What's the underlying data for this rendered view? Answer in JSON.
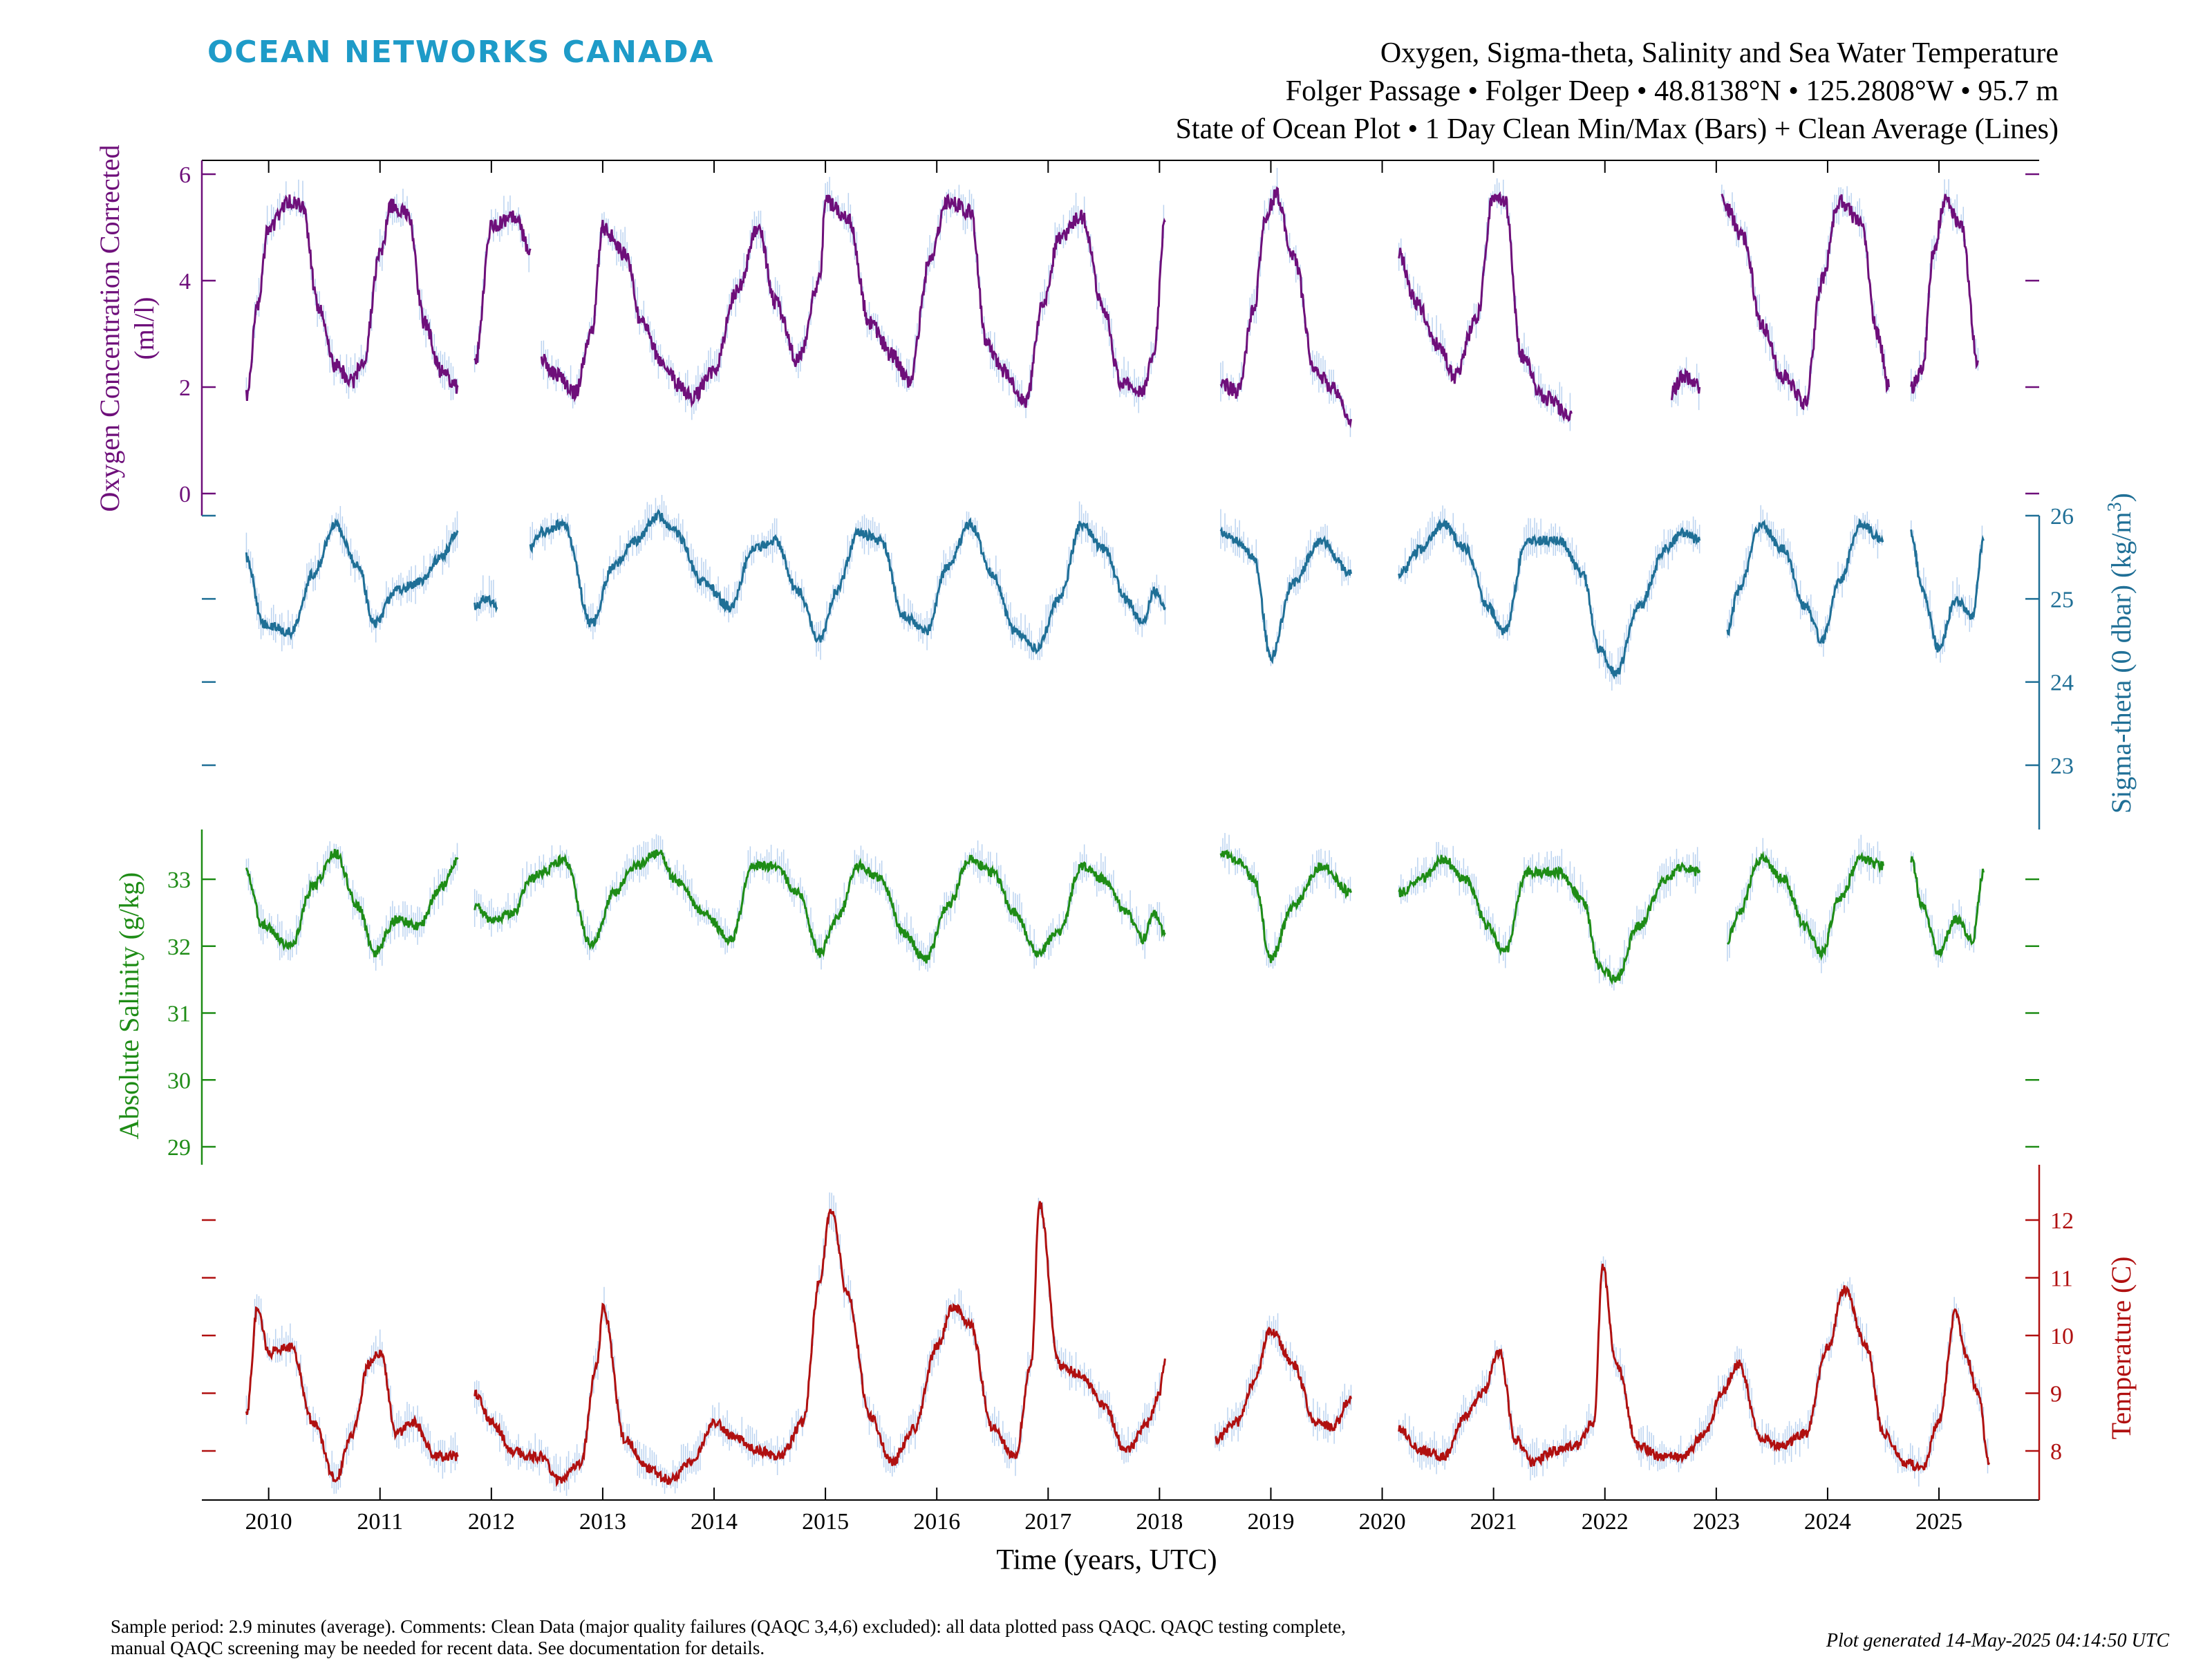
{
  "header": {
    "logo_text": "OCEAN NETWORKS CANADA",
    "title_line1": "Oxygen, Sigma-theta, Salinity and Sea Water Temperature",
    "title_line2": "Folger Passage • Folger Deep • 48.8138°N • 125.2808°W • 95.7 m",
    "title_line3": "State of Ocean Plot • 1 Day Clean Min/Max (Bars) + Clean Average (Lines)"
  },
  "footer": {
    "comments_line1": "Sample period: 2.9 minutes (average). Comments: Clean Data (major quality failures (QAQC 3,4,6) excluded): all data plotted pass QAQC. QAQC testing complete,",
    "comments_line2": "manual QAQC screening may be needed for recent data. See documentation for details.",
    "generated": "Plot generated 14-May-2025 04:14:50 UTC"
  },
  "colors": {
    "oxygen": "#6e0f7a",
    "sigma": "#1f6f96",
    "salinity": "#1e8c16",
    "temperature": "#b01010",
    "bars": "#aac8ec",
    "logo": "#1e9bc8"
  },
  "chart_data": {
    "type": "line",
    "xlabel": "Time (years, UTC)",
    "xlim": [
      2009.4,
      2025.9
    ],
    "x_ticks": [
      2010,
      2011,
      2012,
      2013,
      2014,
      2015,
      2016,
      2017,
      2018,
      2019,
      2020,
      2021,
      2022,
      2023,
      2024,
      2025
    ],
    "x_tick_labels": [
      "2010",
      "2011",
      "2012",
      "2013",
      "2014",
      "2015",
      "2016",
      "2017",
      "2018",
      "2019",
      "2020",
      "2021",
      "2022",
      "2023",
      "2024",
      "2025"
    ],
    "series": [
      {
        "key": "oxygen",
        "name": "Oxygen Concentration Corrected",
        "ylabel_line1": "Oxygen Concentration Corrected",
        "ylabel_line2": "(ml/l)",
        "side": "left",
        "yticks": [
          0,
          2,
          4,
          6
        ],
        "ytick_labels": [
          "0",
          "2",
          "4",
          "6"
        ],
        "x": [
          2009.8,
          2009.9,
          2010.0,
          2010.2,
          2010.3,
          2010.45,
          2010.6,
          2010.75,
          2010.85,
          2011.0,
          2011.1,
          2011.25,
          2011.4,
          2011.55,
          2011.7,
          2011.85,
          2012.0,
          2012.2,
          2012.35,
          2012.45,
          2012.6,
          2012.75,
          2012.9,
          2013.0,
          2013.2,
          2013.35,
          2013.55,
          2013.7,
          2013.8,
          2014.0,
          2014.2,
          2014.4,
          2014.55,
          2014.75,
          2014.95,
          2015.0,
          2015.2,
          2015.4,
          2015.6,
          2015.75,
          2015.95,
          2016.1,
          2016.3,
          2016.45,
          2016.6,
          2016.8,
          2016.95,
          2017.1,
          2017.3,
          2017.5,
          2017.65,
          2017.85,
          2017.95,
          2018.05,
          2018.55,
          2018.7,
          2018.85,
          2018.95,
          2019.05,
          2019.2,
          2019.4,
          2019.55,
          2019.72,
          2020.15,
          2020.3,
          2020.5,
          2020.65,
          2020.85,
          2021.0,
          2021.1,
          2021.25,
          2021.45,
          2021.7,
          2022.6,
          2022.7,
          2022.85,
          2023.05,
          2023.25,
          2023.4,
          2023.6,
          2023.8,
          2023.95,
          2024.1,
          2024.3,
          2024.45,
          2024.55,
          2024.75,
          2024.85,
          2024.95,
          2025.05,
          2025.2,
          2025.35
        ],
        "y": [
          1.8,
          3.5,
          5.0,
          5.5,
          5.4,
          3.5,
          2.4,
          2.1,
          2.5,
          4.5,
          5.4,
          5.3,
          3.2,
          2.3,
          2.0,
          2.4,
          5.0,
          5.2,
          4.6,
          2.5,
          2.2,
          1.9,
          3.0,
          5.0,
          4.5,
          3.2,
          2.4,
          2.0,
          1.8,
          2.3,
          3.8,
          5.0,
          3.6,
          2.5,
          4.0,
          5.5,
          5.2,
          3.2,
          2.6,
          2.1,
          4.5,
          5.5,
          5.3,
          2.8,
          2.3,
          1.7,
          3.5,
          4.8,
          5.2,
          3.5,
          2.1,
          1.9,
          2.6,
          5.1,
          2.1,
          1.9,
          3.5,
          5.2,
          5.6,
          4.5,
          2.3,
          2.0,
          1.4,
          4.5,
          3.6,
          2.8,
          2.2,
          3.3,
          5.6,
          5.5,
          2.6,
          1.8,
          1.5,
          1.9,
          2.2,
          2.0,
          5.5,
          4.8,
          3.2,
          2.2,
          1.7,
          4.0,
          5.5,
          5.1,
          3.0,
          2.0,
          2.0,
          2.3,
          4.5,
          5.5,
          5.0,
          2.5
        ],
        "gaps_after_x": [
          2011.7,
          2012.35,
          2018.05,
          2019.72,
          2021.7,
          2022.85,
          2024.55
        ]
      },
      {
        "key": "sigma",
        "name": "Sigma-theta (0 dbar)",
        "ylabel": "Sigma-theta (0 dbar) (kg/m",
        "ylabel_sup": "3",
        "ylabel_close": ")",
        "side": "right",
        "yticks": [
          23,
          24,
          25,
          26
        ],
        "ytick_labels": [
          "23",
          "24",
          "25",
          "26"
        ],
        "x": [
          2009.8,
          2009.95,
          2010.2,
          2010.4,
          2010.6,
          2010.8,
          2010.95,
          2011.15,
          2011.35,
          2011.55,
          2011.7,
          2011.85,
          2011.95,
          2012.05,
          2012.35,
          2012.45,
          2012.65,
          2012.9,
          2013.1,
          2013.3,
          2013.5,
          2013.65,
          2013.9,
          2014.15,
          2014.35,
          2014.55,
          2014.75,
          2014.95,
          2015.1,
          2015.3,
          2015.5,
          2015.7,
          2015.9,
          2016.1,
          2016.3,
          2016.5,
          2016.7,
          2016.9,
          2017.1,
          2017.3,
          2017.5,
          2017.7,
          2017.85,
          2017.95,
          2018.05,
          2018.55,
          2018.7,
          2018.85,
          2019.0,
          2019.2,
          2019.45,
          2019.72,
          2020.15,
          2020.35,
          2020.55,
          2020.75,
          2020.95,
          2021.1,
          2021.3,
          2021.6,
          2021.8,
          2021.95,
          2022.1,
          2022.3,
          2022.55,
          2022.7,
          2022.85,
          2023.1,
          2023.2,
          2023.4,
          2023.6,
          2023.8,
          2023.95,
          2024.1,
          2024.3,
          2024.5,
          2024.75,
          2024.85,
          2025.0,
          2025.15,
          2025.3,
          2025.4
        ],
        "y": [
          25.5,
          24.7,
          24.6,
          25.3,
          25.9,
          25.4,
          24.7,
          25.1,
          25.2,
          25.5,
          25.8,
          24.9,
          25.0,
          24.9,
          25.6,
          25.8,
          25.9,
          24.7,
          25.4,
          25.7,
          26.0,
          25.8,
          25.2,
          24.9,
          25.6,
          25.7,
          25.1,
          24.5,
          25.1,
          25.8,
          25.7,
          24.8,
          24.6,
          25.4,
          25.9,
          25.3,
          24.6,
          24.4,
          25.0,
          25.9,
          25.6,
          25.0,
          24.7,
          25.1,
          24.9,
          25.8,
          25.7,
          25.5,
          24.3,
          25.2,
          25.7,
          25.3,
          25.3,
          25.6,
          25.9,
          25.6,
          24.9,
          24.6,
          25.7,
          25.7,
          25.3,
          24.4,
          24.1,
          24.9,
          25.6,
          25.8,
          25.7,
          24.6,
          25.1,
          25.9,
          25.6,
          24.9,
          24.5,
          25.2,
          25.9,
          25.7,
          25.8,
          25.1,
          24.4,
          25.0,
          24.8,
          25.7
        ],
        "gaps_after_x": [
          2011.7,
          2012.05,
          2018.05,
          2019.72,
          2022.85,
          2024.5
        ]
      },
      {
        "key": "salinity",
        "name": "Absolute Salinity",
        "ylabel": "Absolute Salinity (g/kg)",
        "side": "left",
        "yticks": [
          29,
          30,
          31,
          32,
          33
        ],
        "ytick_labels": [
          "29",
          "30",
          "31",
          "32",
          "33"
        ],
        "x": [
          2009.8,
          2009.95,
          2010.2,
          2010.4,
          2010.6,
          2010.8,
          2010.95,
          2011.15,
          2011.35,
          2011.55,
          2011.7,
          2011.85,
          2012.0,
          2012.2,
          2012.35,
          2012.45,
          2012.65,
          2012.9,
          2013.1,
          2013.3,
          2013.5,
          2013.65,
          2013.9,
          2014.15,
          2014.35,
          2014.55,
          2014.75,
          2014.95,
          2015.1,
          2015.3,
          2015.5,
          2015.7,
          2015.9,
          2016.1,
          2016.3,
          2016.5,
          2016.7,
          2016.9,
          2017.1,
          2017.3,
          2017.5,
          2017.7,
          2017.85,
          2017.95,
          2018.05,
          2018.55,
          2018.7,
          2018.85,
          2019.0,
          2019.2,
          2019.45,
          2019.72,
          2020.15,
          2020.35,
          2020.55,
          2020.75,
          2020.95,
          2021.1,
          2021.3,
          2021.6,
          2021.8,
          2021.95,
          2022.1,
          2022.3,
          2022.55,
          2022.7,
          2022.85,
          2023.1,
          2023.2,
          2023.4,
          2023.6,
          2023.8,
          2023.95,
          2024.1,
          2024.3,
          2024.5,
          2024.75,
          2024.85,
          2025.0,
          2025.15,
          2025.3,
          2025.4
        ],
        "y": [
          33.1,
          32.3,
          32.0,
          32.9,
          33.4,
          32.6,
          31.9,
          32.4,
          32.3,
          32.9,
          33.3,
          32.6,
          32.4,
          32.5,
          33.0,
          33.1,
          33.3,
          32.0,
          32.8,
          33.2,
          33.4,
          33.0,
          32.5,
          32.1,
          33.2,
          33.2,
          32.8,
          31.9,
          32.4,
          33.2,
          33.0,
          32.2,
          31.8,
          32.6,
          33.3,
          33.1,
          32.5,
          31.9,
          32.2,
          33.2,
          33.0,
          32.5,
          32.1,
          32.5,
          32.2,
          33.4,
          33.3,
          33.0,
          31.8,
          32.6,
          33.2,
          32.8,
          32.8,
          33.0,
          33.3,
          33.0,
          32.3,
          31.9,
          33.1,
          33.1,
          32.7,
          31.7,
          31.5,
          32.3,
          33.0,
          33.2,
          33.1,
          32.1,
          32.5,
          33.3,
          33.0,
          32.3,
          31.9,
          32.7,
          33.3,
          33.2,
          33.3,
          32.6,
          31.9,
          32.4,
          32.1,
          33.1
        ],
        "gaps_after_x": [
          2011.7,
          2018.05,
          2019.72,
          2022.85,
          2024.5
        ]
      },
      {
        "key": "temperature",
        "name": "Temperature",
        "ylabel": "Temperature (C)",
        "side": "right",
        "yticks": [
          8,
          9,
          10,
          11,
          12
        ],
        "ytick_labels": [
          "8",
          "9",
          "10",
          "11",
          "12"
        ],
        "x": [
          2009.8,
          2009.9,
          2010.0,
          2010.2,
          2010.4,
          2010.6,
          2010.75,
          2010.9,
          2011.0,
          2011.15,
          2011.3,
          2011.5,
          2011.7,
          2011.85,
          2012.0,
          2012.2,
          2012.35,
          2012.45,
          2012.6,
          2012.8,
          2012.95,
          2013.0,
          2013.2,
          2013.4,
          2013.6,
          2013.8,
          2014.0,
          2014.2,
          2014.4,
          2014.6,
          2014.8,
          2014.95,
          2015.05,
          2015.2,
          2015.4,
          2015.6,
          2015.8,
          2016.0,
          2016.15,
          2016.3,
          2016.5,
          2016.7,
          2016.85,
          2016.92,
          2017.1,
          2017.3,
          2017.5,
          2017.7,
          2017.9,
          2018.0,
          2018.05,
          2018.5,
          2018.7,
          2018.85,
          2019.0,
          2019.2,
          2019.4,
          2019.55,
          2019.72,
          2020.15,
          2020.35,
          2020.55,
          2020.75,
          2020.9,
          2021.05,
          2021.2,
          2021.35,
          2021.55,
          2021.75,
          2021.9,
          2021.98,
          2022.1,
          2022.3,
          2022.5,
          2022.7,
          2022.9,
          2023.05,
          2023.2,
          2023.4,
          2023.6,
          2023.8,
          2024.0,
          2024.15,
          2024.35,
          2024.5,
          2024.7,
          2024.85,
          2025.0,
          2025.15,
          2025.25,
          2025.35,
          2025.45
        ],
        "y": [
          8.6,
          10.5,
          9.7,
          9.8,
          8.5,
          7.5,
          8.3,
          9.5,
          9.7,
          8.3,
          8.5,
          7.9,
          7.9,
          9.0,
          8.5,
          8.0,
          7.9,
          7.9,
          7.5,
          7.8,
          9.5,
          10.5,
          8.2,
          7.7,
          7.5,
          7.8,
          8.5,
          8.2,
          8.0,
          7.9,
          8.5,
          11.0,
          12.2,
          10.7,
          8.6,
          7.8,
          8.4,
          9.8,
          10.5,
          10.2,
          8.4,
          7.9,
          9.5,
          12.3,
          9.5,
          9.3,
          8.8,
          8.0,
          8.5,
          9.0,
          9.6,
          8.2,
          8.5,
          9.2,
          10.1,
          9.5,
          8.5,
          8.4,
          8.9,
          8.4,
          8.0,
          7.9,
          8.6,
          9.0,
          9.7,
          8.2,
          7.8,
          8.0,
          8.1,
          8.5,
          11.2,
          9.5,
          8.1,
          7.9,
          7.9,
          8.3,
          9.0,
          9.5,
          8.2,
          8.1,
          8.3,
          9.8,
          10.8,
          9.8,
          8.3,
          7.8,
          7.7,
          8.5,
          10.4,
          9.6,
          9.0,
          7.8
        ],
        "gaps_after_x": [
          2011.7,
          2018.05,
          2019.72
        ]
      }
    ]
  }
}
